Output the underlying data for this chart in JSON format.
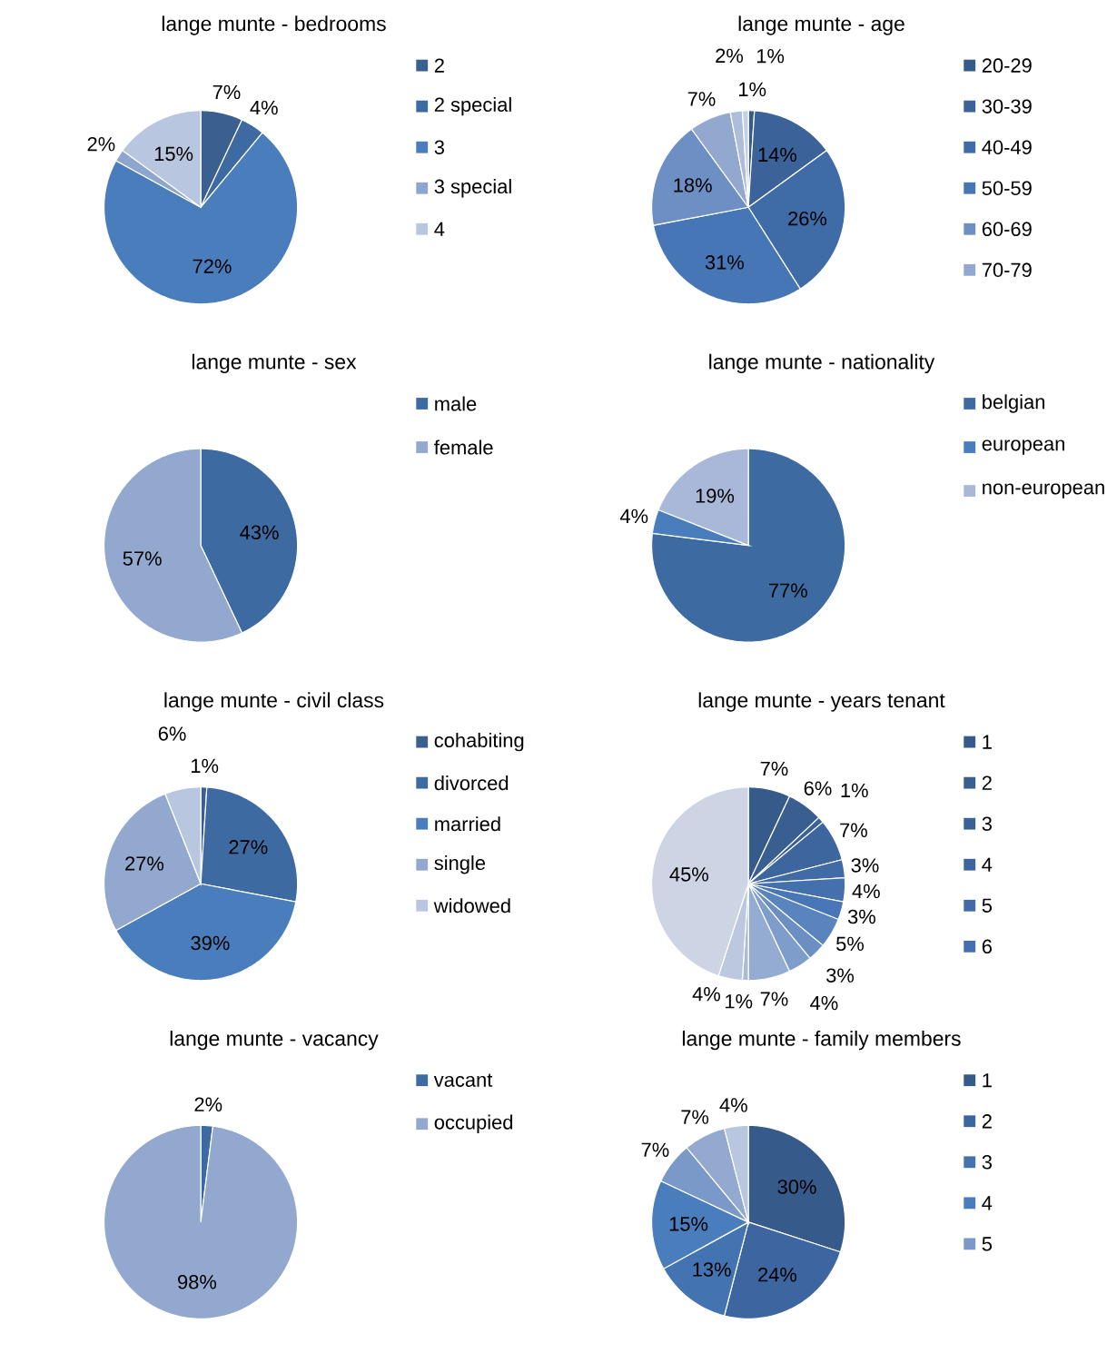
{
  "chart_data": [
    {
      "type": "pie",
      "title": "lange munte - bedrooms",
      "categories": [
        "2",
        "2  special",
        "3",
        "3 special",
        "4"
      ],
      "values": [
        7,
        4,
        72,
        2,
        15
      ],
      "value_labels": [
        "7%",
        "4%",
        "72%",
        "2%",
        "15%"
      ],
      "colors": [
        "#3b5f8f",
        "#3e6aa2",
        "#4a7dbb",
        "#8ea6cf",
        "#b9c6df"
      ],
      "legend": "right"
    },
    {
      "type": "pie",
      "title": "lange munte - age",
      "categories": [
        "20-29",
        "30-39",
        "40-49",
        "50-59",
        "60-69",
        "70-79",
        null,
        null
      ],
      "values": [
        1,
        14,
        26,
        31,
        18,
        7,
        2,
        1
      ],
      "value_labels": [
        "1%",
        "14%",
        "26%",
        "31%",
        "18%",
        "7%",
        "2%",
        "1%"
      ],
      "colors": [
        "#365a8a",
        "#3b6299",
        "#3f6ba6",
        "#4676b6",
        "#6d8fc4",
        "#93a8cf",
        "#aebdda",
        "#c5d0e5"
      ],
      "legend": "right"
    },
    {
      "type": "pie",
      "title": "lange munte - sex",
      "categories": [
        "male",
        "female"
      ],
      "values": [
        43,
        57
      ],
      "value_labels": [
        "43%",
        "57%"
      ],
      "colors": [
        "#3e6aa2",
        "#92a8cf"
      ],
      "legend": "right"
    },
    {
      "type": "pie",
      "title": "lange munte - nationality",
      "categories": [
        "belgian",
        "european",
        "non-european"
      ],
      "values": [
        77,
        4,
        19
      ],
      "value_labels": [
        "77%",
        "4%",
        "19%"
      ],
      "colors": [
        "#3e6aa2",
        "#4a7dbb",
        "#a9b8d8"
      ],
      "legend": "right"
    },
    {
      "type": "pie",
      "title": "lange munte - civil class",
      "categories": [
        "cohabiting",
        "divorced",
        "married",
        "single",
        "widowed"
      ],
      "values": [
        1,
        27,
        39,
        27,
        6
      ],
      "value_labels": [
        "1%",
        "27%",
        "39%",
        "27%",
        "6%"
      ],
      "colors": [
        "#3b5f8f",
        "#3e6aa2",
        "#4a7dbb",
        "#92a8cf",
        "#b9c6df"
      ],
      "legend": "right"
    },
    {
      "type": "pie",
      "title": "lange munte - years tenant",
      "categories": [
        "1",
        "2",
        "3",
        "4",
        "5",
        "6",
        null,
        null,
        null,
        null,
        null,
        null,
        null,
        null
      ],
      "values": [
        7,
        6,
        1,
        7,
        3,
        4,
        3,
        5,
        3,
        4,
        7,
        1,
        4,
        45
      ],
      "value_labels": [
        "7%",
        "6%",
        "1%",
        "7%",
        "3%",
        "4%",
        "3%",
        "5%",
        "3%",
        "4%",
        "7%",
        "1%",
        "4%",
        "45%"
      ],
      "colors": [
        "#365a8a",
        "#395e90",
        "#3b6297",
        "#3e669e",
        "#416ba6",
        "#4470ae",
        "#4876b6",
        "#5a84be",
        "#6b8fc3",
        "#7f9dca",
        "#95acd2",
        "#a9bbd9",
        "#bbc8e0",
        "#cdd5e5"
      ],
      "legend": "right"
    },
    {
      "type": "pie",
      "title": "lange munte - vacancy",
      "categories": [
        "vacant",
        "occupied"
      ],
      "values": [
        2,
        98
      ],
      "value_labels": [
        "2%",
        "98%"
      ],
      "colors": [
        "#3e6aa2",
        "#92a8cf"
      ],
      "legend": "right"
    },
    {
      "type": "pie",
      "title": "lange munte - family members",
      "categories": [
        "1",
        "2",
        "3",
        "4",
        "5",
        null,
        null
      ],
      "values": [
        30,
        24,
        13,
        15,
        7,
        7,
        4
      ],
      "value_labels": [
        "30%",
        "24%",
        "13%",
        "15%",
        "7%",
        "7%",
        "4%"
      ],
      "colors": [
        "#365a8a",
        "#3d65a0",
        "#4373b0",
        "#4a7dbb",
        "#7b99c8",
        "#94a9cf",
        "#b9c6df"
      ],
      "legend": "right"
    }
  ]
}
